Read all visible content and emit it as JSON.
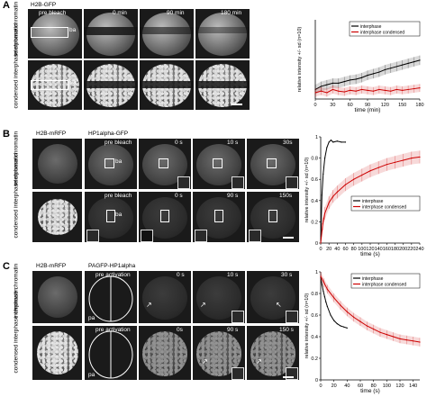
{
  "panels": {
    "A": {
      "letter": "A",
      "stain": "H2B-GFP",
      "rows": [
        "interphase chromatin",
        "condensed interphase chromatin"
      ],
      "times": [
        "pre bleach",
        "0 min",
        "90 min",
        "180 min"
      ],
      "ba_label": "ba"
    },
    "B": {
      "letter": "B",
      "stain1": "H2B-mRFP",
      "stain2": "HP1alpha-GFP",
      "rows": [
        "interphase chromatin",
        "condensed interphase chromatin"
      ],
      "times_row1": [
        "pre bleach",
        "0 s",
        "10 s",
        "30s"
      ],
      "times_row2": [
        "pre bleach",
        "0 s",
        "90 s",
        "150s"
      ],
      "ba_label": "ba"
    },
    "C": {
      "letter": "C",
      "stain1": "H2B-mRFP",
      "stain2": "PAGFP-HP1alpha",
      "rows": [
        "interphase chromatin",
        "condensed interphase chromatin"
      ],
      "times_row1": [
        "pre activation",
        "0 s",
        "10 s",
        "30 s"
      ],
      "times_row2": [
        "pre activation",
        "0s",
        "90 s",
        "150 s"
      ],
      "pa_label": "pa"
    }
  },
  "chart_data": [
    {
      "type": "line",
      "xlabel": "time (min)",
      "ylabel": "relative intensity +/- sd (n=10)",
      "xlim": [
        0,
        180
      ],
      "ylim": [
        0,
        1
      ],
      "xticks": [
        0,
        30,
        60,
        90,
        120,
        150,
        180
      ],
      "legend": [
        "interphase",
        "interphase condensed"
      ],
      "legend_position": "top-right",
      "series": [
        {
          "name": "interphase",
          "color": "#000000",
          "x": [
            0,
            10,
            20,
            30,
            40,
            50,
            60,
            70,
            80,
            90,
            100,
            110,
            120,
            130,
            140,
            150,
            160,
            170,
            180
          ],
          "y": [
            0.12,
            0.16,
            0.18,
            0.2,
            0.2,
            0.22,
            0.24,
            0.25,
            0.27,
            0.3,
            0.32,
            0.34,
            0.37,
            0.39,
            0.41,
            0.43,
            0.45,
            0.47,
            0.49
          ],
          "sd": 0.06
        },
        {
          "name": "interphase condensed",
          "color": "#cc0000",
          "x": [
            0,
            10,
            20,
            30,
            40,
            50,
            60,
            70,
            80,
            90,
            100,
            110,
            120,
            130,
            140,
            150,
            160,
            170,
            180
          ],
          "y": [
            0.08,
            0.1,
            0.08,
            0.12,
            0.1,
            0.09,
            0.11,
            0.1,
            0.12,
            0.11,
            0.1,
            0.12,
            0.11,
            0.1,
            0.12,
            0.11,
            0.12,
            0.13,
            0.14
          ],
          "sd": 0.05
        }
      ]
    },
    {
      "type": "line",
      "xlabel": "time (s)",
      "ylabel": "relative intensity +/- sd (n=10)",
      "xlim": [
        0,
        240
      ],
      "ylim": [
        0,
        1
      ],
      "xticks": [
        0,
        20,
        40,
        60,
        80,
        100,
        120,
        140,
        160,
        180,
        200,
        220,
        240
      ],
      "yticks": [
        0,
        0.2,
        0.4,
        0.6,
        0.8,
        1
      ],
      "legend": [
        "interphase",
        "interphase condensed"
      ],
      "legend_position": "middle-right",
      "series": [
        {
          "name": "interphase",
          "color": "#000000",
          "x": [
            0,
            3,
            6,
            10,
            15,
            20,
            25,
            30,
            40,
            50,
            60
          ],
          "y": [
            0.0,
            0.45,
            0.65,
            0.8,
            0.9,
            0.95,
            0.97,
            0.95,
            0.96,
            0.95,
            0.95
          ]
        },
        {
          "name": "interphase condensed",
          "color": "#cc0000",
          "x": [
            0,
            5,
            10,
            20,
            30,
            40,
            60,
            80,
            100,
            120,
            140,
            160,
            180,
            200,
            220,
            240
          ],
          "y": [
            0.0,
            0.18,
            0.28,
            0.38,
            0.44,
            0.48,
            0.55,
            0.6,
            0.64,
            0.68,
            0.71,
            0.74,
            0.76,
            0.78,
            0.8,
            0.81
          ],
          "sd": 0.06
        }
      ]
    },
    {
      "type": "line",
      "xlabel": "time (s)",
      "ylabel": "relative intensity +/- sd (n=10)",
      "xlim": [
        0,
        150
      ],
      "ylim": [
        0,
        1
      ],
      "xticks": [
        0,
        20,
        40,
        60,
        80,
        100,
        120,
        140
      ],
      "yticks": [
        0,
        0.2,
        0.4,
        0.6,
        0.8,
        1
      ],
      "legend": [
        "interphase",
        "interphase condensed"
      ],
      "legend_position": "top-right",
      "series": [
        {
          "name": "interphase",
          "color": "#000000",
          "x": [
            0,
            2,
            4,
            6,
            8,
            10,
            15,
            20,
            25,
            30,
            35,
            40
          ],
          "y": [
            0.95,
            0.88,
            0.82,
            0.77,
            0.72,
            0.68,
            0.6,
            0.55,
            0.52,
            0.5,
            0.49,
            0.48
          ]
        },
        {
          "name": "interphase condensed",
          "color": "#cc0000",
          "x": [
            0,
            5,
            10,
            20,
            30,
            40,
            50,
            60,
            70,
            80,
            90,
            100,
            110,
            120,
            130,
            140,
            150
          ],
          "y": [
            0.96,
            0.9,
            0.84,
            0.76,
            0.69,
            0.63,
            0.58,
            0.54,
            0.5,
            0.47,
            0.44,
            0.42,
            0.4,
            0.38,
            0.37,
            0.36,
            0.35
          ],
          "sd": 0.04
        }
      ]
    }
  ]
}
